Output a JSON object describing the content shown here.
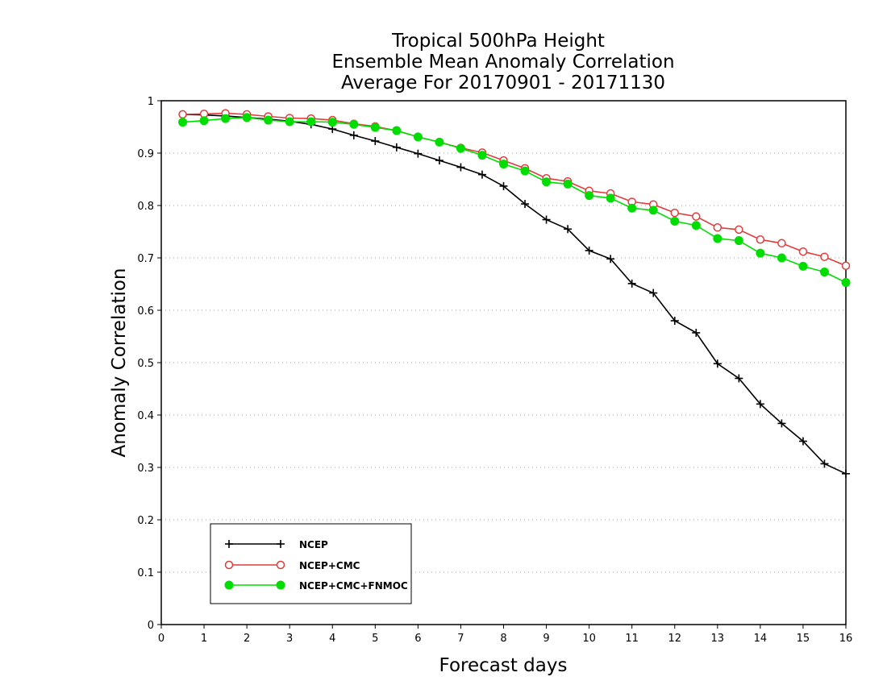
{
  "chart_data": {
    "type": "line",
    "title_lines": [
      "Tropical 500hPa Height",
      "Ensemble Mean Anomaly Correlation",
      "Average For 20170901 - 20171130"
    ],
    "xlabel": "Forecast days",
    "ylabel": "Anomaly Correlation",
    "xlim": [
      0,
      16
    ],
    "ylim": [
      0,
      1
    ],
    "xticks": [
      0,
      1,
      2,
      3,
      4,
      5,
      6,
      7,
      8,
      9,
      10,
      11,
      12,
      13,
      14,
      15,
      16
    ],
    "xtick_labels": [
      "0",
      "1",
      "2",
      "3",
      "4",
      "5",
      "6",
      "7",
      "8",
      "9",
      "10",
      "11",
      "12",
      "13",
      "14",
      "15",
      "16"
    ],
    "yticks": [
      0,
      0.1,
      0.2,
      0.3,
      0.4,
      0.5,
      0.6,
      0.7,
      0.8,
      0.9,
      1
    ],
    "ytick_labels": [
      "0",
      "0.1",
      "0.2",
      "0.3",
      "0.4",
      "0.5",
      "0.6",
      "0.7",
      "0.8",
      "0.9",
      "1"
    ],
    "grid": "dotted horizontal at y ticks",
    "legend_position": "bottom-left",
    "x": [
      0.5,
      1,
      1.5,
      2,
      2.5,
      3,
      3.5,
      4,
      4.5,
      5,
      5.5,
      6,
      6.5,
      7,
      7.5,
      8,
      8.5,
      9,
      9.5,
      10,
      10.5,
      11,
      11.5,
      12,
      12.5,
      13,
      13.5,
      14,
      14.5,
      15,
      15.5,
      16
    ],
    "series": [
      {
        "name": "NCEP",
        "color": "#000000",
        "marker": "plus",
        "values": [
          0.974,
          0.973,
          0.971,
          0.968,
          0.965,
          0.961,
          0.955,
          0.946,
          0.934,
          0.923,
          0.911,
          0.899,
          0.886,
          0.873,
          0.859,
          0.837,
          0.803,
          0.773,
          0.755,
          0.714,
          0.698,
          0.651,
          0.633,
          0.58,
          0.557,
          0.498,
          0.47,
          0.421,
          0.384,
          0.35,
          0.307,
          0.288
        ]
      },
      {
        "name": "NCEP+CMC",
        "color": "#e03c3c",
        "marker": "open-circle",
        "values": [
          0.974,
          0.975,
          0.976,
          0.974,
          0.97,
          0.967,
          0.966,
          0.963,
          0.956,
          0.951,
          0.943,
          0.931,
          0.921,
          0.91,
          0.901,
          0.886,
          0.871,
          0.852,
          0.846,
          0.828,
          0.823,
          0.807,
          0.802,
          0.786,
          0.779,
          0.758,
          0.754,
          0.735,
          0.728,
          0.712,
          0.702,
          0.685
        ]
      },
      {
        "name": "NCEP+CMC+FNMOC",
        "color": "#00dd00",
        "marker": "filled-circle",
        "values": [
          0.959,
          0.962,
          0.966,
          0.968,
          0.963,
          0.96,
          0.96,
          0.959,
          0.955,
          0.949,
          0.943,
          0.931,
          0.921,
          0.909,
          0.896,
          0.879,
          0.866,
          0.845,
          0.841,
          0.819,
          0.814,
          0.795,
          0.791,
          0.77,
          0.762,
          0.737,
          0.733,
          0.709,
          0.7,
          0.684,
          0.673,
          0.653
        ]
      }
    ]
  }
}
